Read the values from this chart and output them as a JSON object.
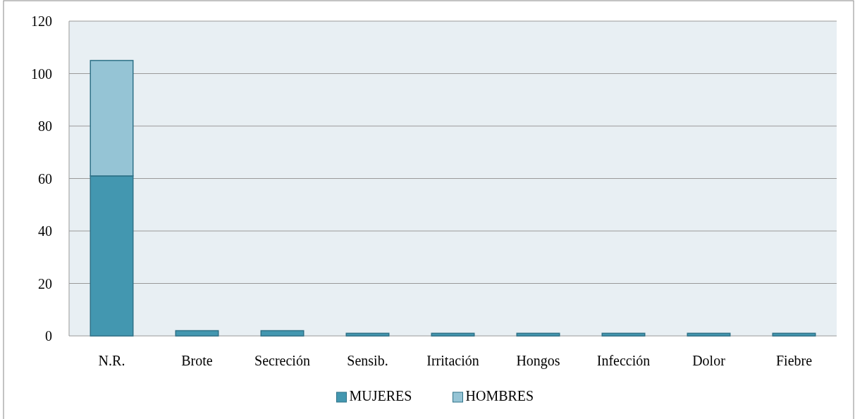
{
  "chart_data": {
    "type": "bar",
    "stacked": true,
    "categories": [
      "N.R.",
      "Brote",
      "Secreción",
      "Sensib.",
      "Irritación",
      "Hongos",
      "Infección",
      "Dolor",
      "Fiebre"
    ],
    "series": [
      {
        "name": "MUJERES",
        "color": "#4397b0",
        "values": [
          61,
          2,
          2,
          1,
          1,
          1,
          1,
          1,
          1
        ]
      },
      {
        "name": "HOMBRES",
        "color": "#95c4d5",
        "values": [
          44,
          0,
          0,
          0,
          0,
          0,
          0,
          0,
          0
        ]
      }
    ],
    "ylim": [
      0,
      120
    ],
    "yticks": [
      0,
      20,
      40,
      60,
      80,
      100,
      120
    ],
    "grid": "y",
    "legend": "bottom"
  }
}
